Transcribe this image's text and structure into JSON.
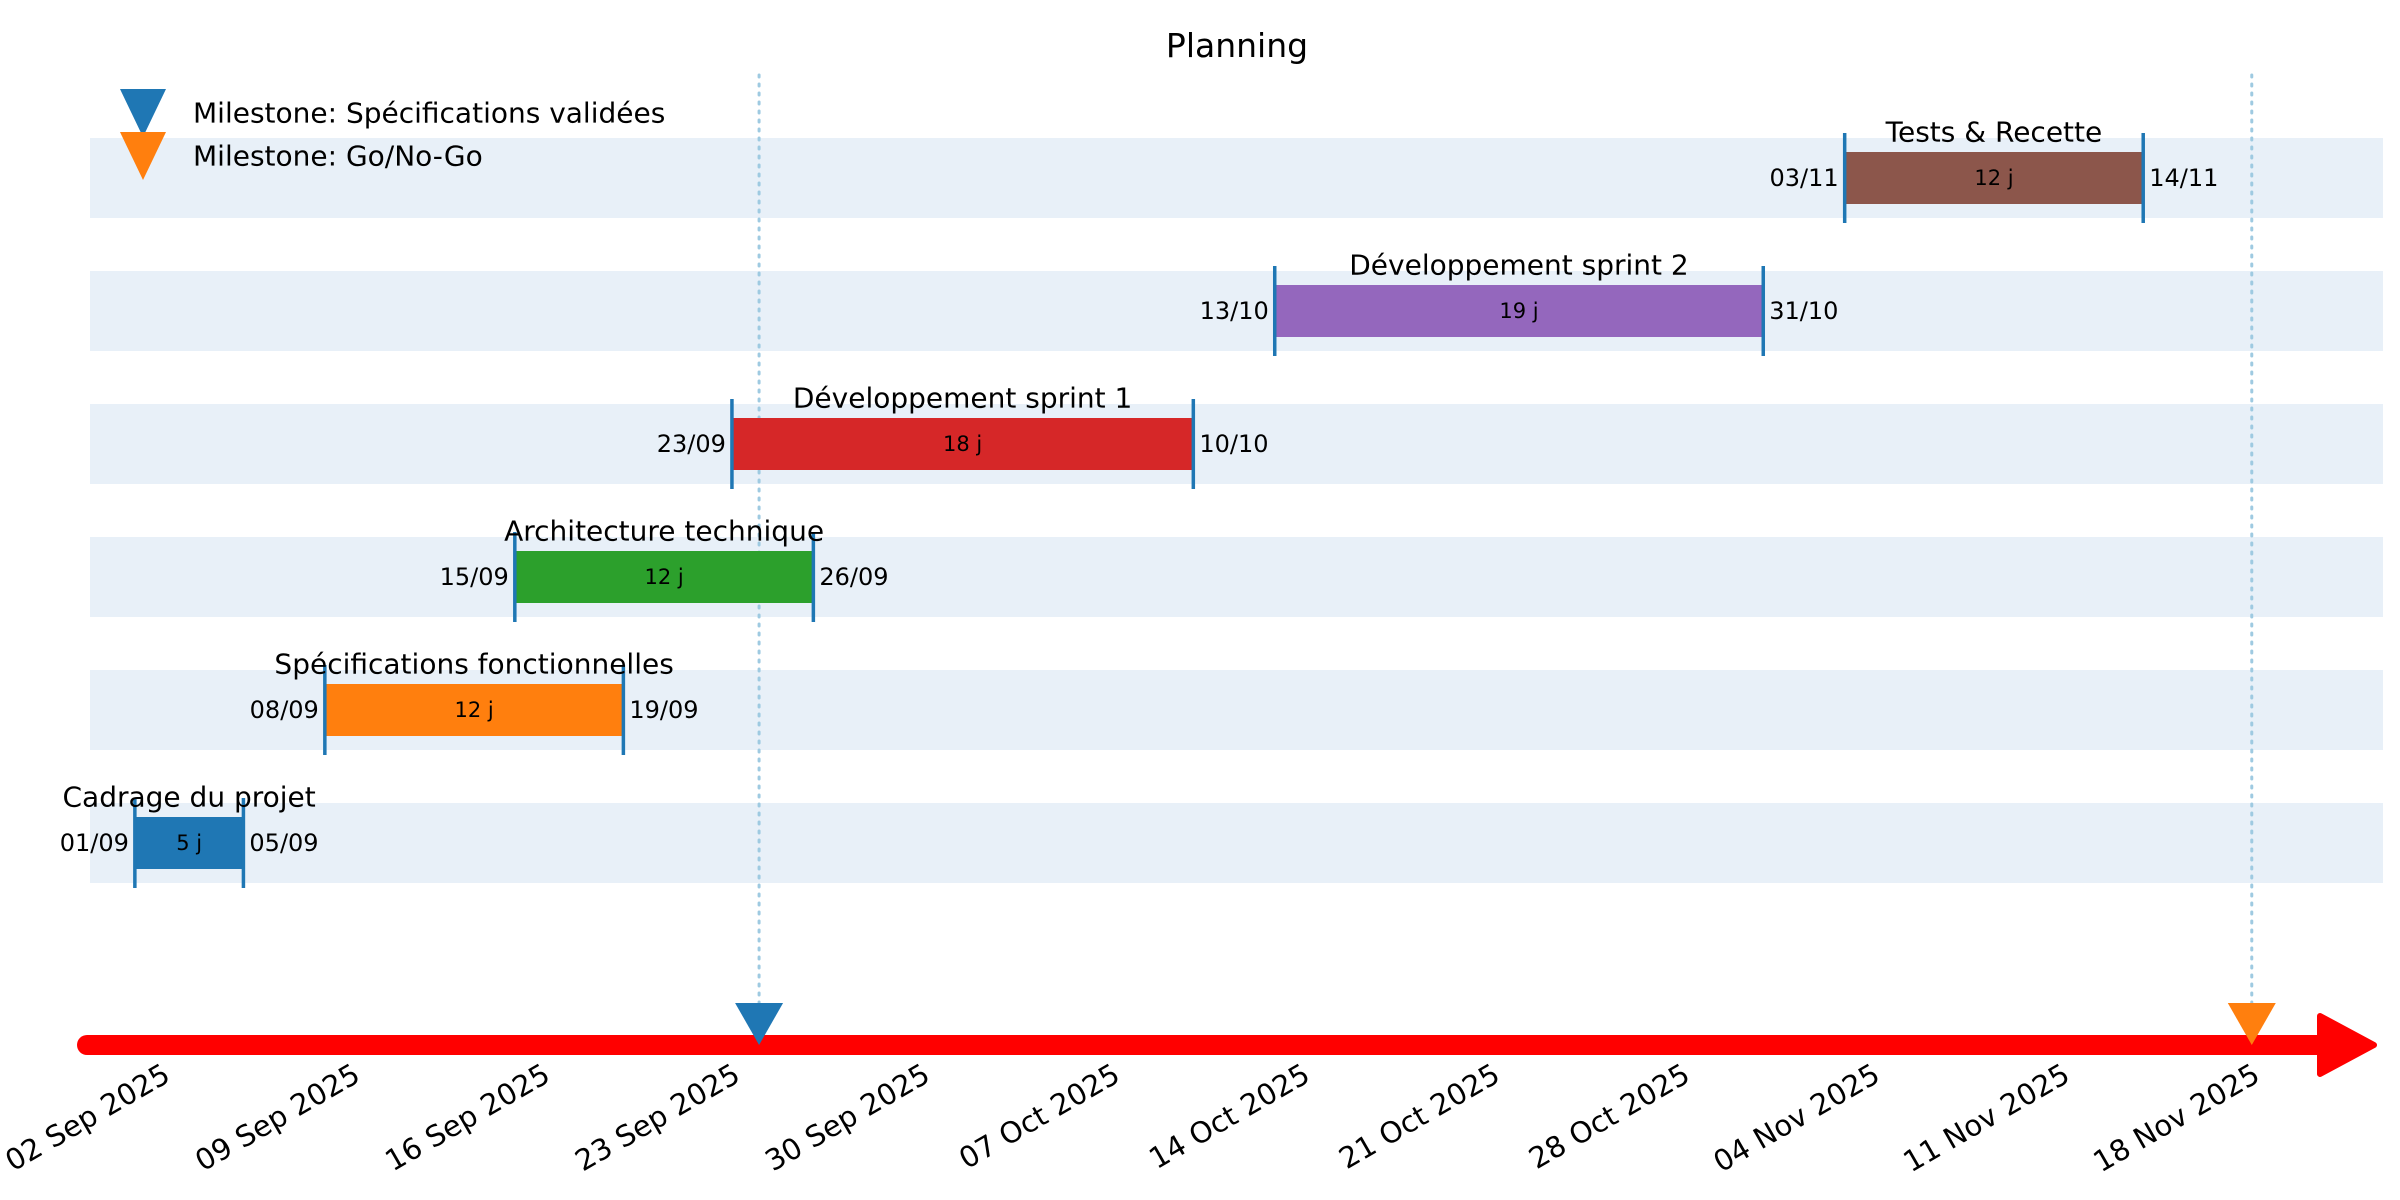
{
  "chart_data": {
    "type": "gantt",
    "title": "Planning",
    "x_range": [
      "2025-08-27",
      "2025-11-19"
    ],
    "x_ticks": [
      {
        "date": "2025-09-02",
        "label": "02 Sep 2025"
      },
      {
        "date": "2025-09-09",
        "label": "09 Sep 2025"
      },
      {
        "date": "2025-09-16",
        "label": "16 Sep 2025"
      },
      {
        "date": "2025-09-23",
        "label": "23 Sep 2025"
      },
      {
        "date": "2025-09-30",
        "label": "30 Sep 2025"
      },
      {
        "date": "2025-10-07",
        "label": "07 Oct 2025"
      },
      {
        "date": "2025-10-14",
        "label": "14 Oct 2025"
      },
      {
        "date": "2025-10-21",
        "label": "21 Oct 2025"
      },
      {
        "date": "2025-10-28",
        "label": "28 Oct 2025"
      },
      {
        "date": "2025-11-04",
        "label": "04 Nov 2025"
      },
      {
        "date": "2025-11-11",
        "label": "11 Nov 2025"
      },
      {
        "date": "2025-11-18",
        "label": "18 Nov 2025"
      }
    ],
    "tasks": [
      {
        "name": "Cadrage du projet",
        "start": "2025-09-01",
        "end": "2025-09-05",
        "start_label": "01/09",
        "end_label": "05/09",
        "duration_label": "5 j",
        "color": "#1f77b4"
      },
      {
        "name": "Spécifications fonctionnelles",
        "start": "2025-09-08",
        "end": "2025-09-19",
        "start_label": "08/09",
        "end_label": "19/09",
        "duration_label": "12 j",
        "color": "#ff7f0e"
      },
      {
        "name": "Architecture technique",
        "start": "2025-09-15",
        "end": "2025-09-26",
        "start_label": "15/09",
        "end_label": "26/09",
        "duration_label": "12 j",
        "color": "#2ca02c"
      },
      {
        "name": "Développement sprint 1",
        "start": "2025-09-23",
        "end": "2025-10-10",
        "start_label": "23/09",
        "end_label": "10/10",
        "duration_label": "18 j",
        "color": "#d62728"
      },
      {
        "name": "Développement sprint 2",
        "start": "2025-10-13",
        "end": "2025-10-31",
        "start_label": "13/10",
        "end_label": "31/10",
        "duration_label": "19 j",
        "color": "#9467bd"
      },
      {
        "name": "Tests & Recette",
        "start": "2025-11-03",
        "end": "2025-11-14",
        "start_label": "03/11",
        "end_label": "14/11",
        "duration_label": "12 j",
        "color": "#8c564b"
      }
    ],
    "milestones": [
      {
        "name": "Milestone: Spécifications validées",
        "date": "2025-09-24",
        "color": "#1f77b4"
      },
      {
        "name": "Milestone: Go/No-Go",
        "date": "2025-11-18",
        "color": "#ff7f0e"
      }
    ],
    "legend_position": "top-left",
    "timeline_color": "#ff0000",
    "row_band_color": "#e8f0f8",
    "edge_marker_color": "#1f77b4",
    "grid": false
  }
}
